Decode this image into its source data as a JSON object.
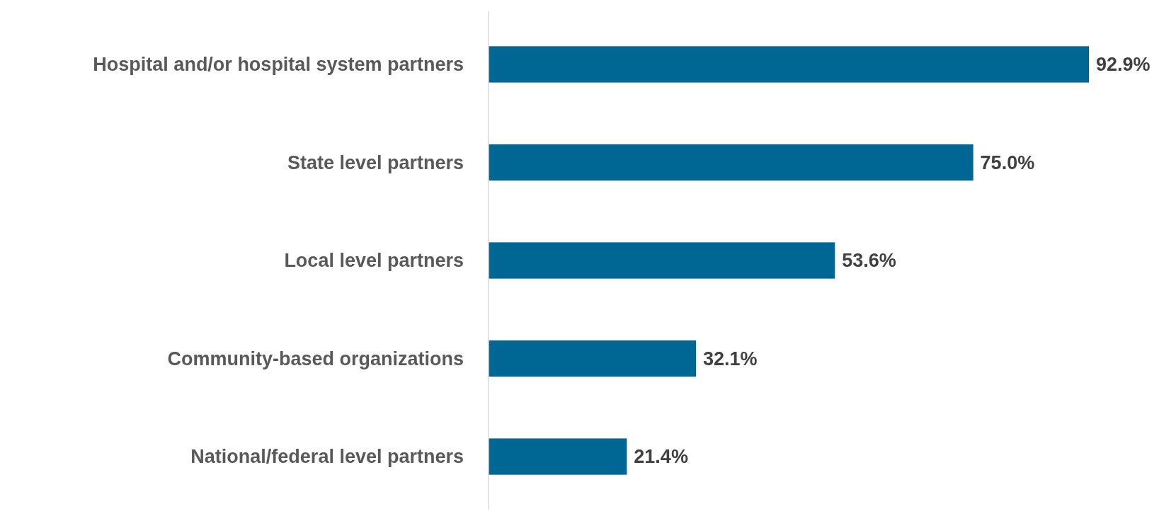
{
  "chart_data": {
    "type": "bar",
    "orientation": "horizontal",
    "categories": [
      "Hospital and/or hospital system partners",
      "State level partners",
      "Local level partners",
      "Community-based organizations",
      "National/federal level partners"
    ],
    "values": [
      92.9,
      75.0,
      53.6,
      32.1,
      21.4
    ],
    "value_labels": [
      "92.9%",
      "75.0%",
      "53.6%",
      "32.1%",
      "21.4%"
    ],
    "color": "#006794"
  }
}
